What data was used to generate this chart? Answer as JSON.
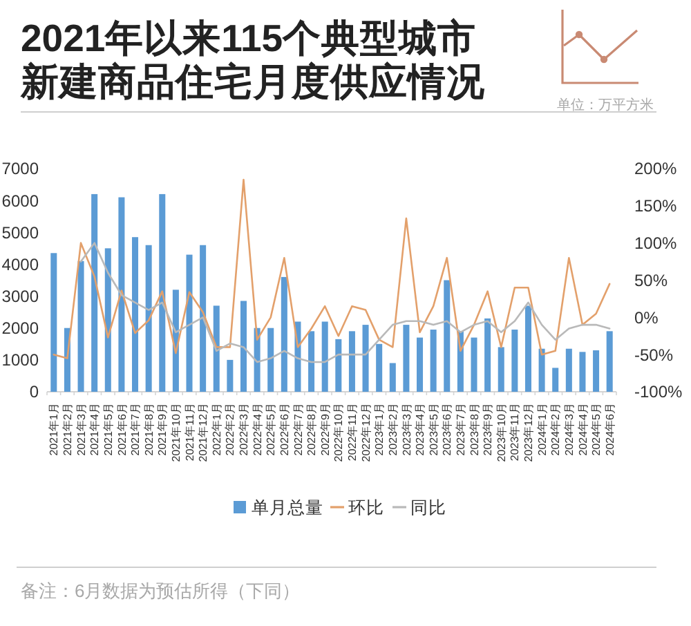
{
  "chart_data": {
    "type": "bar",
    "title": "2021年以来115个典型城市新建商品住宅月度供应情况",
    "categories": [
      "2021年1月",
      "2021年2月",
      "2021年3月",
      "2021年4月",
      "2021年5月",
      "2021年6月",
      "2021年7月",
      "2021年8月",
      "2021年9月",
      "2021年10月",
      "2021年11月",
      "2021年12月",
      "2022年1月",
      "2022年2月",
      "2022年3月",
      "2022年4月",
      "2022年5月",
      "2022年6月",
      "2022年7月",
      "2022年8月",
      "2022年9月",
      "2022年10月",
      "2022年11月",
      "2022年12月",
      "2023年1月",
      "2023年2月",
      "2023年3月",
      "2023年4月",
      "2023年5月",
      "2023年6月",
      "2023年7月",
      "2023年8月",
      "2023年9月",
      "2023年10月",
      "2023年11月",
      "2023年12月",
      "2024年1月",
      "2024年2月",
      "2024年3月",
      "2024年4月",
      "2024年5月",
      "2024年6月"
    ],
    "series": [
      {
        "name": "单月总量",
        "color": "#5b9bd5",
        "values": [
          4350,
          2000,
          4100,
          6200,
          4500,
          6100,
          4850,
          4600,
          6200,
          3200,
          4300,
          4600,
          2700,
          1000,
          2850,
          2000,
          2000,
          3600,
          2200,
          1900,
          2200,
          1650,
          1900,
          2100,
          1500,
          900,
          2100,
          1700,
          1950,
          3500,
          1900,
          1700,
          2300,
          1400,
          1950,
          2700,
          1350,
          750,
          1350,
          1250,
          1300,
          1900
        ]
      },
      {
        "name": "环比",
        "type": "line",
        "axis": "y2",
        "color": "#e3a06b",
        "values": [
          -50,
          -55,
          100,
          55,
          -27,
          36,
          -21,
          -4,
          35,
          -48,
          34,
          7,
          -40,
          -40,
          185,
          -30,
          0,
          80,
          -40,
          -15,
          15,
          -25,
          15,
          10,
          -30,
          -40,
          133,
          -20,
          15,
          80,
          -45,
          -10,
          35,
          -40,
          40,
          40,
          -50,
          -45,
          80,
          -10,
          5,
          45
        ]
      },
      {
        "name": "同比",
        "type": "line",
        "axis": "y2",
        "color": "#b9b9b9",
        "values": [
          null,
          null,
          75,
          100,
          60,
          30,
          20,
          10,
          20,
          -20,
          -10,
          0,
          -45,
          -35,
          -40,
          -60,
          -55,
          -45,
          -55,
          -60,
          -60,
          -50,
          -50,
          -50,
          -30,
          -10,
          -5,
          -5,
          -10,
          -5,
          -20,
          -10,
          -5,
          -20,
          -5,
          20,
          -10,
          -30,
          -15,
          -10,
          -10,
          -15
        ]
      }
    ],
    "ylim": [
      0,
      7000
    ],
    "yticks": [
      0,
      1000,
      2000,
      3000,
      4000,
      5000,
      6000,
      7000
    ],
    "y2lim": [
      -100,
      200
    ],
    "y2ticks": [
      {
        "value": -100,
        "label": "-100%"
      },
      {
        "value": -50,
        "label": "-50%"
      },
      {
        "value": 0,
        "label": "0%"
      },
      {
        "value": 50,
        "label": "50%"
      },
      {
        "value": 100,
        "label": "100%"
      },
      {
        "value": 150,
        "label": "150%"
      },
      {
        "value": 200,
        "label": "200%"
      }
    ],
    "legend": "bottom",
    "annotations": [
      "单位：万平方米",
      "备注：6月数据为预估所得（下同）"
    ]
  }
}
